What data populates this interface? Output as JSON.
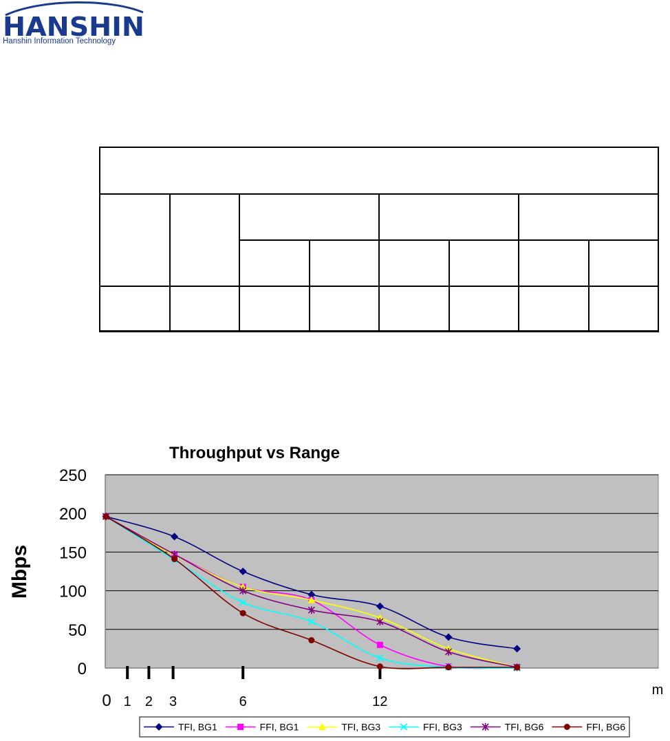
{
  "logo": {
    "brand": "HANSHIN",
    "tagline": "Hanshin Information Technology",
    "color": "#1a3a8f"
  },
  "table": {
    "rows": 4,
    "note": ""
  },
  "chart_data": {
    "type": "line",
    "title": "Throughput vs Range",
    "xlabel": "m",
    "ylabel": "Mbps",
    "ylim": [
      0,
      250
    ],
    "y_ticks": [
      0,
      50,
      100,
      150,
      200,
      250
    ],
    "x_tick_labels": [
      {
        "x": 0,
        "label": "0"
      },
      {
        "x": 1,
        "label": "1"
      },
      {
        "x": 2,
        "label": "2"
      },
      {
        "x": 3,
        "label": "3"
      },
      {
        "x": 6,
        "label": "6"
      },
      {
        "x": 12,
        "label": "12"
      }
    ],
    "x_tick_marks": [
      1,
      2,
      3,
      6,
      12
    ],
    "grid": true,
    "plot_background": "#c0c0c0",
    "legend_position": "bottom",
    "series": [
      {
        "name": "TFI, BG1",
        "color": "#000080",
        "marker": "diamond",
        "points": [
          [
            0,
            196
          ],
          [
            3,
            170
          ],
          [
            6,
            125
          ],
          [
            9,
            95
          ],
          [
            12,
            80
          ],
          [
            15,
            40
          ],
          [
            18,
            25
          ]
        ]
      },
      {
        "name": "FFI, BG1",
        "color": "#ff00ff",
        "marker": "square",
        "points": [
          [
            0,
            196
          ],
          [
            3,
            147
          ],
          [
            6,
            105
          ],
          [
            9,
            88
          ],
          [
            12,
            30
          ],
          [
            15,
            2
          ],
          [
            18,
            1
          ]
        ]
      },
      {
        "name": "TFI, BG3",
        "color": "#ffff00",
        "marker": "triangle",
        "points": [
          [
            0,
            196
          ],
          [
            3,
            146
          ],
          [
            6,
            105
          ],
          [
            9,
            88
          ],
          [
            12,
            65
          ],
          [
            15,
            25
          ],
          [
            18,
            1
          ]
        ]
      },
      {
        "name": "FFI, BG3",
        "color": "#00ffff",
        "marker": "x",
        "points": [
          [
            0,
            196
          ],
          [
            3,
            140
          ],
          [
            6,
            85
          ],
          [
            9,
            60
          ],
          [
            12,
            13
          ],
          [
            15,
            1
          ],
          [
            18,
            0
          ]
        ]
      },
      {
        "name": "TFI, BG6",
        "color": "#800080",
        "marker": "star",
        "points": [
          [
            0,
            196
          ],
          [
            3,
            147
          ],
          [
            6,
            100
          ],
          [
            9,
            75
          ],
          [
            12,
            60
          ],
          [
            15,
            21
          ],
          [
            18,
            1
          ]
        ]
      },
      {
        "name": "FFI, BG6",
        "color": "#800000",
        "marker": "circle",
        "points": [
          [
            0,
            196
          ],
          [
            3,
            141
          ],
          [
            6,
            71
          ],
          [
            9,
            36
          ],
          [
            12,
            2
          ],
          [
            15,
            1
          ],
          [
            18,
            1
          ]
        ]
      }
    ]
  }
}
